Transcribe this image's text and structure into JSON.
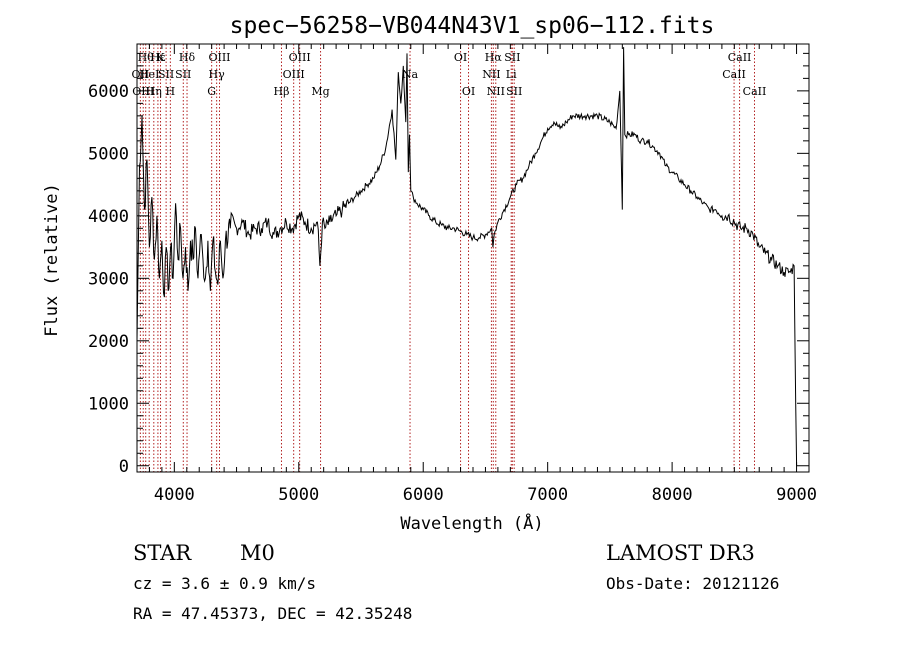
{
  "chart_data": {
    "type": "line",
    "title": "spec−56258−VB044N43V1_sp06−112.fits",
    "xlabel": "Wavelength (Å)",
    "ylabel": "Flux (relative)",
    "xlim": [
      3700,
      9100
    ],
    "ylim": [
      -100,
      6750
    ],
    "xticks": [
      {
        "value": 4000,
        "label": "4000"
      },
      {
        "value": 5000,
        "label": "5000"
      },
      {
        "value": 6000,
        "label": "6000"
      },
      {
        "value": 7000,
        "label": "7000"
      },
      {
        "value": 8000,
        "label": "8000"
      },
      {
        "value": 9000,
        "label": "9000"
      }
    ],
    "yticks": [
      {
        "value": 0,
        "label": "0"
      },
      {
        "value": 1000,
        "label": "1000"
      },
      {
        "value": 2000,
        "label": "2000"
      },
      {
        "value": 3000,
        "label": "3000"
      },
      {
        "value": 4000,
        "label": "4000"
      },
      {
        "value": 5000,
        "label": "5000"
      },
      {
        "value": 6000,
        "label": "6000"
      }
    ],
    "series": [
      {
        "name": "spectrum",
        "x": [
          3700,
          3720,
          3740,
          3760,
          3780,
          3800,
          3820,
          3840,
          3860,
          3880,
          3900,
          3920,
          3935,
          3950,
          3970,
          3990,
          4010,
          4030,
          4050,
          4070,
          4090,
          4110,
          4130,
          4150,
          4170,
          4190,
          4210,
          4230,
          4250,
          4270,
          4290,
          4310,
          4330,
          4350,
          4370,
          4390,
          4410,
          4450,
          4500,
          4550,
          4600,
          4650,
          4700,
          4750,
          4800,
          4850,
          4900,
          4950,
          5000,
          5050,
          5100,
          5150,
          5170,
          5190,
          5210,
          5250,
          5300,
          5350,
          5400,
          5450,
          5500,
          5550,
          5600,
          5650,
          5700,
          5750,
          5780,
          5800,
          5820,
          5840,
          5860,
          5870,
          5880,
          5890,
          5900,
          5920,
          5950,
          6000,
          6050,
          6100,
          6150,
          6200,
          6250,
          6300,
          6350,
          6400,
          6450,
          6500,
          6550,
          6560,
          6570,
          6600,
          6650,
          6700,
          6750,
          6800,
          6850,
          6900,
          6950,
          7000,
          7050,
          7100,
          7150,
          7200,
          7300,
          7400,
          7500,
          7550,
          7580,
          7600,
          7610,
          7620,
          7650,
          7700,
          7750,
          7800,
          7850,
          7900,
          7950,
          8000,
          8050,
          8100,
          8150,
          8200,
          8250,
          8300,
          8350,
          8400,
          8450,
          8500,
          8550,
          8600,
          8650,
          8700,
          8750,
          8800,
          8850,
          8900,
          8950,
          8980,
          9000
        ],
        "y": [
          2000,
          4800,
          5600,
          4100,
          4900,
          3500,
          4300,
          3300,
          4000,
          3000,
          3600,
          2700,
          3500,
          2800,
          3500,
          3000,
          4200,
          3300,
          3800,
          3000,
          3500,
          2800,
          3600,
          3300,
          3800,
          3000,
          3700,
          3300,
          3000,
          3600,
          2800,
          3600,
          3100,
          2900,
          3600,
          3000,
          3600,
          3800,
          3800,
          3900,
          3700,
          3800,
          3800,
          3900,
          3700,
          3800,
          3900,
          3800,
          4000,
          3900,
          3800,
          3900,
          3200,
          3900,
          3800,
          3900,
          4000,
          4100,
          4200,
          4300,
          4400,
          4500,
          4600,
          4800,
          5100,
          5700,
          4900,
          6300,
          5800,
          6400,
          5500,
          6600,
          4700,
          5300,
          4400,
          4300,
          4200,
          4100,
          4000,
          3900,
          3850,
          3800,
          3800,
          3750,
          3700,
          3650,
          3650,
          3700,
          3800,
          3500,
          3700,
          3900,
          4100,
          4300,
          4500,
          4600,
          4800,
          5000,
          5200,
          5400,
          5500,
          5400,
          5500,
          5600,
          5600,
          5600,
          5500,
          5400,
          6000,
          4100,
          6700,
          5300,
          5300,
          5300,
          5200,
          5200,
          5100,
          5000,
          4800,
          4700,
          4600,
          4500,
          4400,
          4300,
          4200,
          4100,
          4100,
          4000,
          4000,
          3900,
          3800,
          3800,
          3700,
          3500,
          3400,
          3300,
          3200,
          3100,
          3100,
          3200,
          0
        ]
      }
    ],
    "lines": [
      {
        "wl": 3727,
        "labels": [
          "OII"
        ],
        "tier": 2
      },
      {
        "wl": 3750,
        "labels": [
          "OIII"
        ],
        "tier": 3
      },
      {
        "wl": 3770,
        "labels": [
          "Hθ"
        ],
        "tier": 1
      },
      {
        "wl": 3798,
        "labels": [
          "HeI"
        ],
        "tier": 2
      },
      {
        "wl": 3835,
        "labels": [
          "Hη"
        ],
        "tier": 3
      },
      {
        "wl": 3868,
        "labels": [
          "Hε"
        ],
        "tier": 1
      },
      {
        "wl": 3889,
        "labels": [
          "K"
        ],
        "tier": 1
      },
      {
        "wl": 3934,
        "labels": [
          "SII"
        ],
        "tier": 2
      },
      {
        "wl": 3968,
        "labels": [
          "H"
        ],
        "tier": 3
      },
      {
        "wl": 4072,
        "labels": [
          "SII"
        ],
        "tier": 2
      },
      {
        "wl": 4102,
        "labels": [
          "Hδ"
        ],
        "tier": 1
      },
      {
        "wl": 4300,
        "labels": [
          "G"
        ],
        "tier": 3
      },
      {
        "wl": 4340,
        "labels": [
          "Hγ"
        ],
        "tier": 2
      },
      {
        "wl": 4363,
        "labels": [
          "OIII"
        ],
        "tier": 1
      },
      {
        "wl": 4861,
        "labels": [
          "Hβ"
        ],
        "tier": 3
      },
      {
        "wl": 4959,
        "labels": [
          "OIII"
        ],
        "tier": 2
      },
      {
        "wl": 5007,
        "labels": [
          "OIII"
        ],
        "tier": 1
      },
      {
        "wl": 5175,
        "labels": [
          "Mg"
        ],
        "tier": 3
      },
      {
        "wl": 5894,
        "labels": [
          "Na"
        ],
        "tier": 2
      },
      {
        "wl": 6300,
        "labels": [
          "OI"
        ],
        "tier": 1
      },
      {
        "wl": 6364,
        "labels": [
          "OI"
        ],
        "tier": 3
      },
      {
        "wl": 6548,
        "labels": [
          "NII"
        ],
        "tier": 2
      },
      {
        "wl": 6563,
        "labels": [
          "Hα"
        ],
        "tier": 1
      },
      {
        "wl": 6583,
        "labels": [
          "NII"
        ],
        "tier": 3
      },
      {
        "wl": 6707,
        "labels": [
          "Li"
        ],
        "tier": 2
      },
      {
        "wl": 6716,
        "labels": [
          "SII"
        ],
        "tier": 1
      },
      {
        "wl": 6731,
        "labels": [
          "SII"
        ],
        "tier": 3
      },
      {
        "wl": 8498,
        "labels": [
          "CaII"
        ],
        "tier": 2
      },
      {
        "wl": 8542,
        "labels": [
          "CaII"
        ],
        "tier": 1
      },
      {
        "wl": 8662,
        "labels": [
          "CaII"
        ],
        "tier": 3
      }
    ]
  },
  "info": {
    "class_label": "STAR",
    "subclass_label": "M0",
    "cz_text": "cz = 3.6 ± 0.9 km/s",
    "radec_text": "RA =  47.45373, DEC =  42.35248",
    "survey_text": "LAMOST DR3",
    "obs_date_text": "Obs-Date: 20121126"
  },
  "colors": {
    "axis": "#000000",
    "spectrum": "#000000",
    "line_marker": "#b22222"
  }
}
